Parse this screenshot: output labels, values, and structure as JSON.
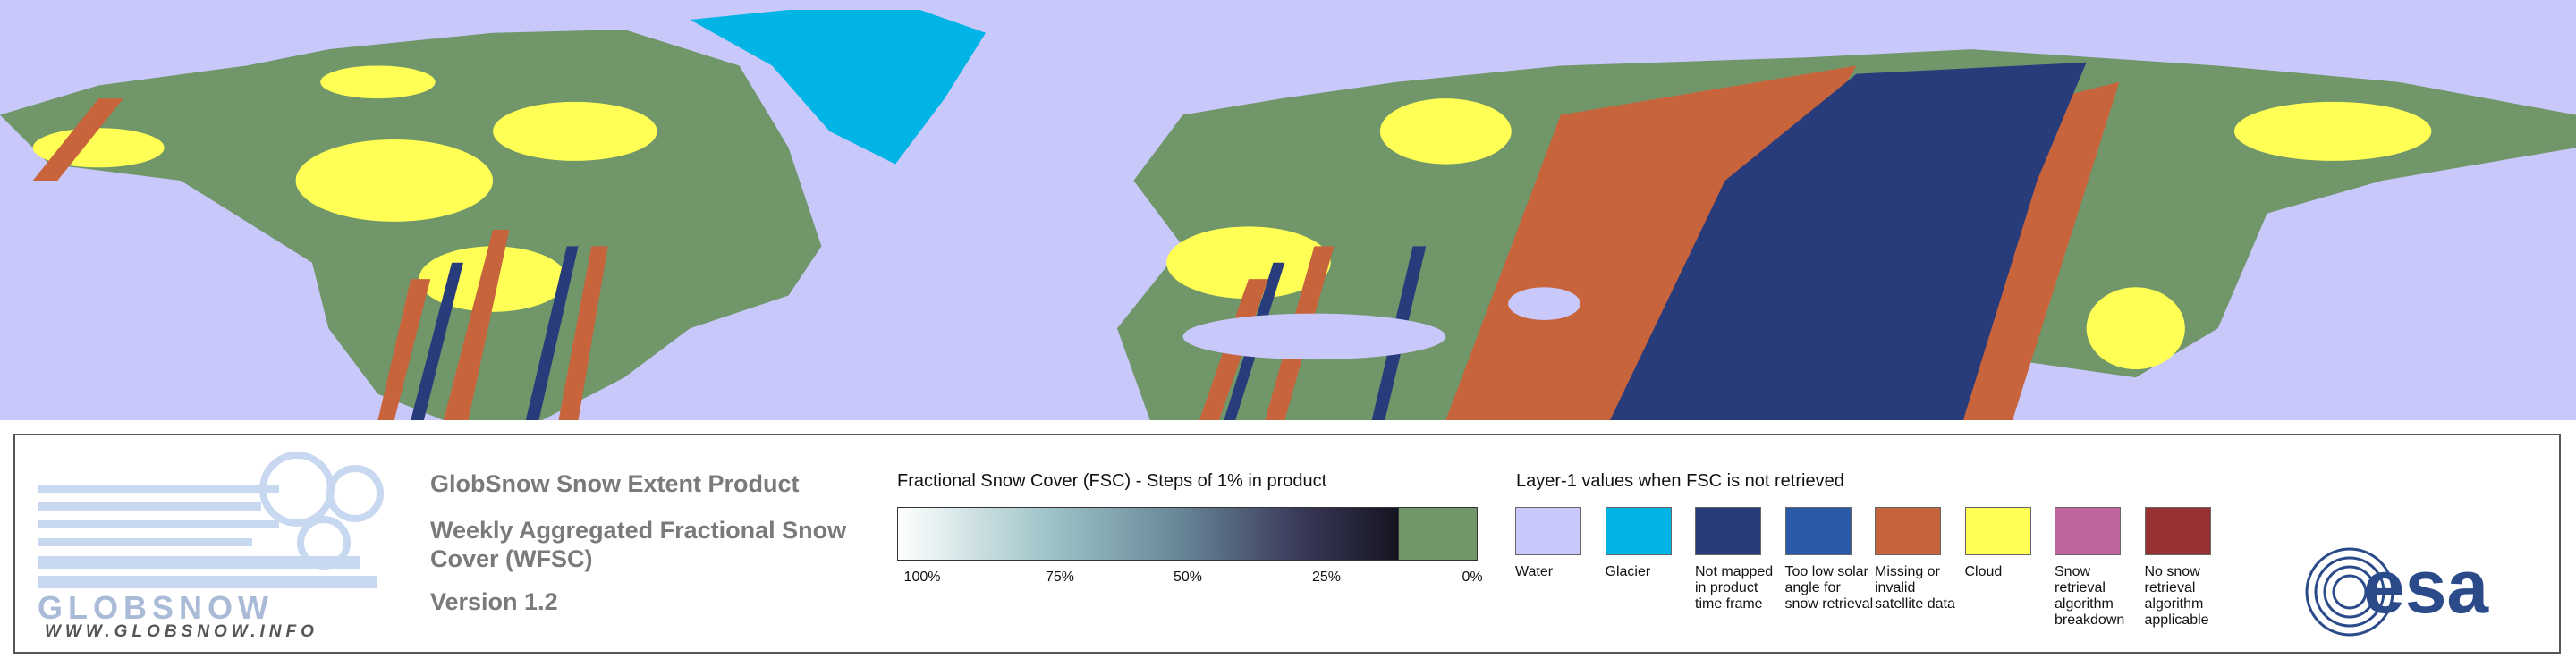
{
  "logo": {
    "name": "GLOBSNOW",
    "url": "WWW.GLOBSNOW.INFO"
  },
  "header": {
    "product": "GlobSnow Snow Extent Product",
    "title": "Weekly Aggregated Fractional Snow Cover (WFSC)",
    "version": "Version 1.2"
  },
  "colorbar": {
    "title": "Fractional Snow Cover (FSC) - Steps of 1% in product",
    "ticks": [
      "100%",
      "75%",
      "50%",
      "25%",
      "0%"
    ]
  },
  "layer1": {
    "title": "Layer-1 values when FSC is not retrieved",
    "items": [
      {
        "label": "Water",
        "color": "#c8c8fa"
      },
      {
        "label": "Glacier",
        "color": "#00b4e6"
      },
      {
        "label": "Not mapped in product time frame",
        "color": "#283c7c"
      },
      {
        "label": "Too low solar angle for snow retrieval",
        "color": "#2a5aa8"
      },
      {
        "label": "Missing or invalid satellite data",
        "color": "#c8643c"
      },
      {
        "label": "Cloud",
        "color": "#ffff55"
      },
      {
        "label": "Snow retrieval algorithm breakdown",
        "color": "#c0649e"
      },
      {
        "label": "No snow retrieval algorithm applicable",
        "color": "#963232"
      }
    ]
  },
  "esa": "esa"
}
